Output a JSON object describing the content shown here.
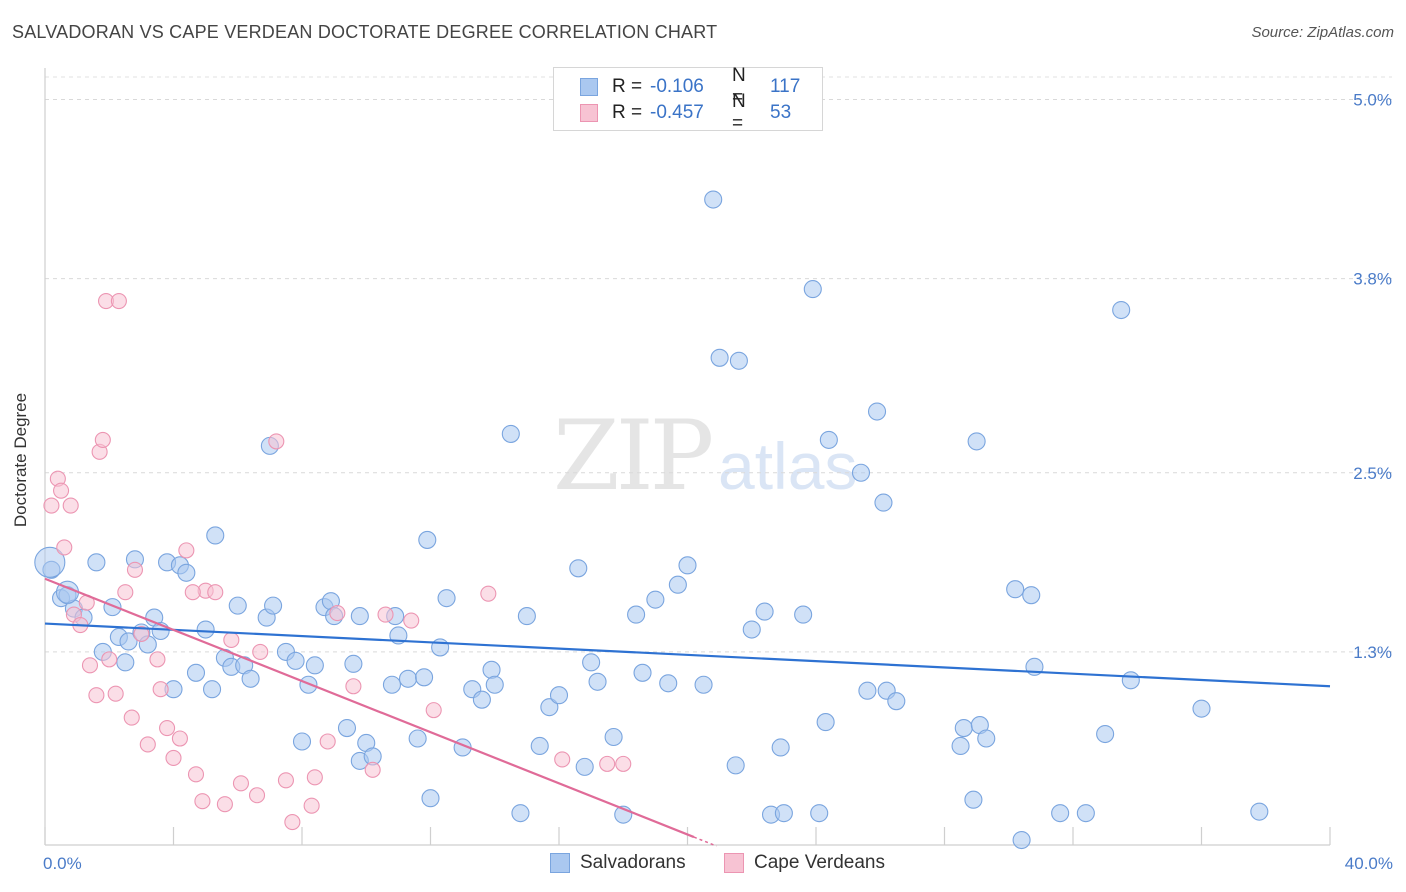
{
  "title": "SALVADORAN VS CAPE VERDEAN DOCTORATE DEGREE CORRELATION CHART",
  "source": "Source: ZipAtlas.com",
  "watermark": {
    "zip": "ZIP",
    "atlas": "atlas"
  },
  "legend": {
    "row1": {
      "r_label": "R =",
      "r_value": "-0.106",
      "n_label": "N =",
      "n_value": "117"
    },
    "row2": {
      "r_label": "R =",
      "r_value": "-0.457",
      "n_label": "N =",
      "n_value": "53"
    }
  },
  "bottom_legend": {
    "s1": "Salvadorans",
    "s2": "Cape Verdeans"
  },
  "colors": {
    "blue_fill": "#aac8f0",
    "blue_stroke": "#7aa5df",
    "blue_line": "#2e72d2",
    "pink_fill": "#f7c3d3",
    "pink_stroke": "#ec95b2",
    "pink_line": "#e06b98"
  },
  "chart_data": {
    "type": "scatter",
    "title": "SALVADORAN VS CAPE VERDEAN DOCTORATE DEGREE CORRELATION CHART",
    "xlabel": "",
    "ylabel": "Doctorate Degree",
    "xlim": [
      0,
      40
    ],
    "ylim": [
      0,
      5.2
    ],
    "x_tick_labels": [
      "0.0%",
      "40.0%"
    ],
    "y_ticks": [
      1.3,
      2.5,
      3.8,
      5.0
    ],
    "y_tick_labels": [
      "1.3%",
      "2.5%",
      "3.8%",
      "5.0%"
    ],
    "grid": "horizontal dashed",
    "series": [
      {
        "name": "Salvadorans",
        "r": -0.106,
        "n": 117,
        "trend": {
          "x": [
            0,
            40
          ],
          "y": [
            1.49,
            1.07
          ]
        },
        "points": [
          [
            0.2,
            1.85
          ],
          [
            0.5,
            1.66
          ],
          [
            0.7,
            1.68
          ],
          [
            0.9,
            1.59
          ],
          [
            1.2,
            1.53
          ],
          [
            1.6,
            1.9
          ],
          [
            1.8,
            1.3
          ],
          [
            2.1,
            1.6
          ],
          [
            2.3,
            1.4
          ],
          [
            2.5,
            1.23
          ],
          [
            2.6,
            1.37
          ],
          [
            2.8,
            1.92
          ],
          [
            3.0,
            1.43
          ],
          [
            3.2,
            1.35
          ],
          [
            3.4,
            1.53
          ],
          [
            3.6,
            1.44
          ],
          [
            3.8,
            1.9
          ],
          [
            4.0,
            1.05
          ],
          [
            4.2,
            1.88
          ],
          [
            4.4,
            1.83
          ],
          [
            4.7,
            1.16
          ],
          [
            5.0,
            1.45
          ],
          [
            5.2,
            1.05
          ],
          [
            5.3,
            2.08
          ],
          [
            5.6,
            1.26
          ],
          [
            5.8,
            1.2
          ],
          [
            6.0,
            1.61
          ],
          [
            6.2,
            1.21
          ],
          [
            6.4,
            1.12
          ],
          [
            6.9,
            1.53
          ],
          [
            7.0,
            2.68
          ],
          [
            7.1,
            1.61
          ],
          [
            7.5,
            1.3
          ],
          [
            7.8,
            1.24
          ],
          [
            8.0,
            0.7
          ],
          [
            8.2,
            1.08
          ],
          [
            8.4,
            1.21
          ],
          [
            8.7,
            1.6
          ],
          [
            8.9,
            1.64
          ],
          [
            9.0,
            1.54
          ],
          [
            9.4,
            0.79
          ],
          [
            9.6,
            1.22
          ],
          [
            9.8,
            1.54
          ],
          [
            9.8,
            0.57
          ],
          [
            10.0,
            0.69
          ],
          [
            10.2,
            0.6
          ],
          [
            10.8,
            1.08
          ],
          [
            10.9,
            1.54
          ],
          [
            11.0,
            1.41
          ],
          [
            11.3,
            1.12
          ],
          [
            11.6,
            0.72
          ],
          [
            11.8,
            1.13
          ],
          [
            11.9,
            2.05
          ],
          [
            12.0,
            0.32
          ],
          [
            12.3,
            1.33
          ],
          [
            12.5,
            1.66
          ],
          [
            13.0,
            0.66
          ],
          [
            13.3,
            1.05
          ],
          [
            13.6,
            0.98
          ],
          [
            13.9,
            1.18
          ],
          [
            14.0,
            1.08
          ],
          [
            14.5,
            2.76
          ],
          [
            14.8,
            0.22
          ],
          [
            15.0,
            1.54
          ],
          [
            15.4,
            0.67
          ],
          [
            15.7,
            0.93
          ],
          [
            16.0,
            1.01
          ],
          [
            16.6,
            1.86
          ],
          [
            16.8,
            0.53
          ],
          [
            17.0,
            1.23
          ],
          [
            17.2,
            1.1
          ],
          [
            17.7,
            0.73
          ],
          [
            18.0,
            0.21
          ],
          [
            18.4,
            1.55
          ],
          [
            18.6,
            1.16
          ],
          [
            19.0,
            1.65
          ],
          [
            19.4,
            1.09
          ],
          [
            19.7,
            1.75
          ],
          [
            20.0,
            1.88
          ],
          [
            20.5,
            1.08
          ],
          [
            20.8,
            4.33
          ],
          [
            21.0,
            3.27
          ],
          [
            21.5,
            0.54
          ],
          [
            21.6,
            3.25
          ],
          [
            22.0,
            1.45
          ],
          [
            22.4,
            1.57
          ],
          [
            22.6,
            0.21
          ],
          [
            22.9,
            0.66
          ],
          [
            23.0,
            0.22
          ],
          [
            23.6,
            1.55
          ],
          [
            23.9,
            3.73
          ],
          [
            24.1,
            0.22
          ],
          [
            24.3,
            0.83
          ],
          [
            24.4,
            2.72
          ],
          [
            25.4,
            2.5
          ],
          [
            25.6,
            1.04
          ],
          [
            25.9,
            2.91
          ],
          [
            26.1,
            2.3
          ],
          [
            26.2,
            1.04
          ],
          [
            26.5,
            0.97
          ],
          [
            28.5,
            0.67
          ],
          [
            28.6,
            0.79
          ],
          [
            28.9,
            0.31
          ],
          [
            29.0,
            2.71
          ],
          [
            29.1,
            0.81
          ],
          [
            29.3,
            0.72
          ],
          [
            30.2,
            1.72
          ],
          [
            30.4,
            0.04
          ],
          [
            30.7,
            1.68
          ],
          [
            30.8,
            1.2
          ],
          [
            31.6,
            0.22
          ],
          [
            32.4,
            0.22
          ],
          [
            33.0,
            0.75
          ],
          [
            33.8,
            1.11
          ],
          [
            33.5,
            3.59
          ],
          [
            36.0,
            0.92
          ],
          [
            37.8,
            0.23
          ]
        ]
      },
      {
        "name": "Cape Verdeans",
        "r": -0.457,
        "n": 53,
        "trend": {
          "x": [
            0,
            20.2
          ],
          "y": [
            1.79,
            0.06
          ]
        },
        "trend_dashed": {
          "x": [
            20.2,
            20.9
          ],
          "y": [
            0.06,
            0.0
          ]
        },
        "points": [
          [
            0.2,
            2.28
          ],
          [
            0.4,
            2.46
          ],
          [
            0.5,
            2.38
          ],
          [
            0.6,
            2.0
          ],
          [
            0.8,
            2.28
          ],
          [
            0.9,
            1.55
          ],
          [
            1.1,
            1.48
          ],
          [
            1.3,
            1.63
          ],
          [
            1.4,
            1.21
          ],
          [
            1.6,
            1.01
          ],
          [
            1.7,
            2.64
          ],
          [
            1.8,
            2.72
          ],
          [
            1.9,
            3.65
          ],
          [
            2.0,
            1.25
          ],
          [
            2.2,
            1.02
          ],
          [
            2.3,
            3.65
          ],
          [
            2.5,
            1.7
          ],
          [
            2.7,
            0.86
          ],
          [
            2.8,
            1.85
          ],
          [
            3.0,
            1.42
          ],
          [
            3.2,
            0.68
          ],
          [
            3.5,
            1.25
          ],
          [
            3.6,
            1.05
          ],
          [
            3.8,
            0.79
          ],
          [
            4.0,
            0.59
          ],
          [
            4.2,
            0.72
          ],
          [
            4.4,
            1.98
          ],
          [
            4.7,
            0.48
          ],
          [
            4.9,
            0.3
          ],
          [
            5.0,
            1.71
          ],
          [
            5.3,
            1.7
          ],
          [
            5.6,
            0.28
          ],
          [
            5.8,
            1.38
          ],
          [
            6.1,
            0.42
          ],
          [
            6.6,
            0.34
          ],
          [
            7.2,
            2.71
          ],
          [
            7.5,
            0.44
          ],
          [
            7.7,
            0.16
          ],
          [
            8.3,
            0.27
          ],
          [
            8.4,
            0.46
          ],
          [
            8.8,
            0.7
          ],
          [
            9.1,
            1.56
          ],
          [
            9.6,
            1.07
          ],
          [
            10.2,
            0.51
          ],
          [
            10.6,
            1.55
          ],
          [
            11.4,
            1.51
          ],
          [
            12.1,
            0.91
          ],
          [
            13.8,
            1.69
          ],
          [
            16.1,
            0.58
          ],
          [
            17.5,
            0.55
          ],
          [
            18.0,
            0.55
          ],
          [
            4.6,
            1.7
          ],
          [
            6.7,
            1.3
          ]
        ]
      }
    ]
  }
}
